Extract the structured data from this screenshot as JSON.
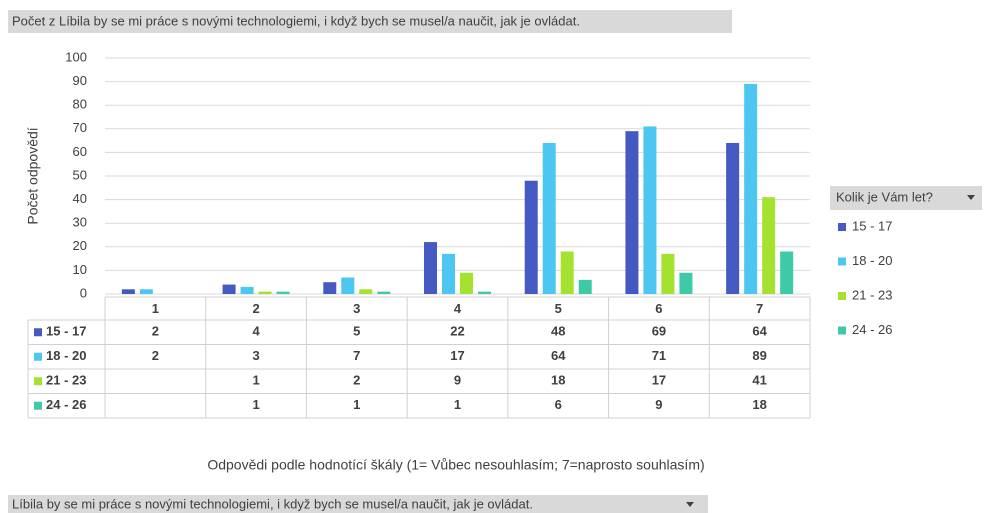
{
  "chart_data": {
    "type": "bar",
    "title": "Počet z Líbila by se mi práce s novými technologiemi, i když bych se musel/a naučit, jak je ovládat.",
    "y_label": "Počet odpovědí",
    "x_label": "Odpovědi podle hodnotící škály (1= Vůbec nesouhlasím; 7=naprosto souhlasím)",
    "legend_title": "Kolik je Vám let?",
    "filter_label": "Líbila by se mi práce s novými technologiemi, i když bych se musel/a naučit, jak je ovládat.",
    "categories": [
      "1",
      "2",
      "3",
      "4",
      "5",
      "6",
      "7"
    ],
    "series": [
      {
        "name": "15 - 17",
        "color": "#4559c3",
        "values": [
          2,
          4,
          5,
          22,
          48,
          69,
          64
        ]
      },
      {
        "name": "18 - 20",
        "color": "#4ec6f2",
        "values": [
          2,
          3,
          7,
          17,
          64,
          71,
          89
        ]
      },
      {
        "name": "21 - 23",
        "color": "#a5e22f",
        "values": [
          null,
          1,
          2,
          9,
          18,
          17,
          41
        ]
      },
      {
        "name": "24 - 26",
        "color": "#3fcaa7",
        "values": [
          null,
          1,
          1,
          1,
          6,
          9,
          18
        ]
      }
    ],
    "ylim": [
      0,
      100
    ],
    "yticks": [
      0,
      10,
      20,
      30,
      40,
      50,
      60,
      70,
      80,
      90,
      100
    ],
    "grid": true,
    "legend": "right"
  }
}
